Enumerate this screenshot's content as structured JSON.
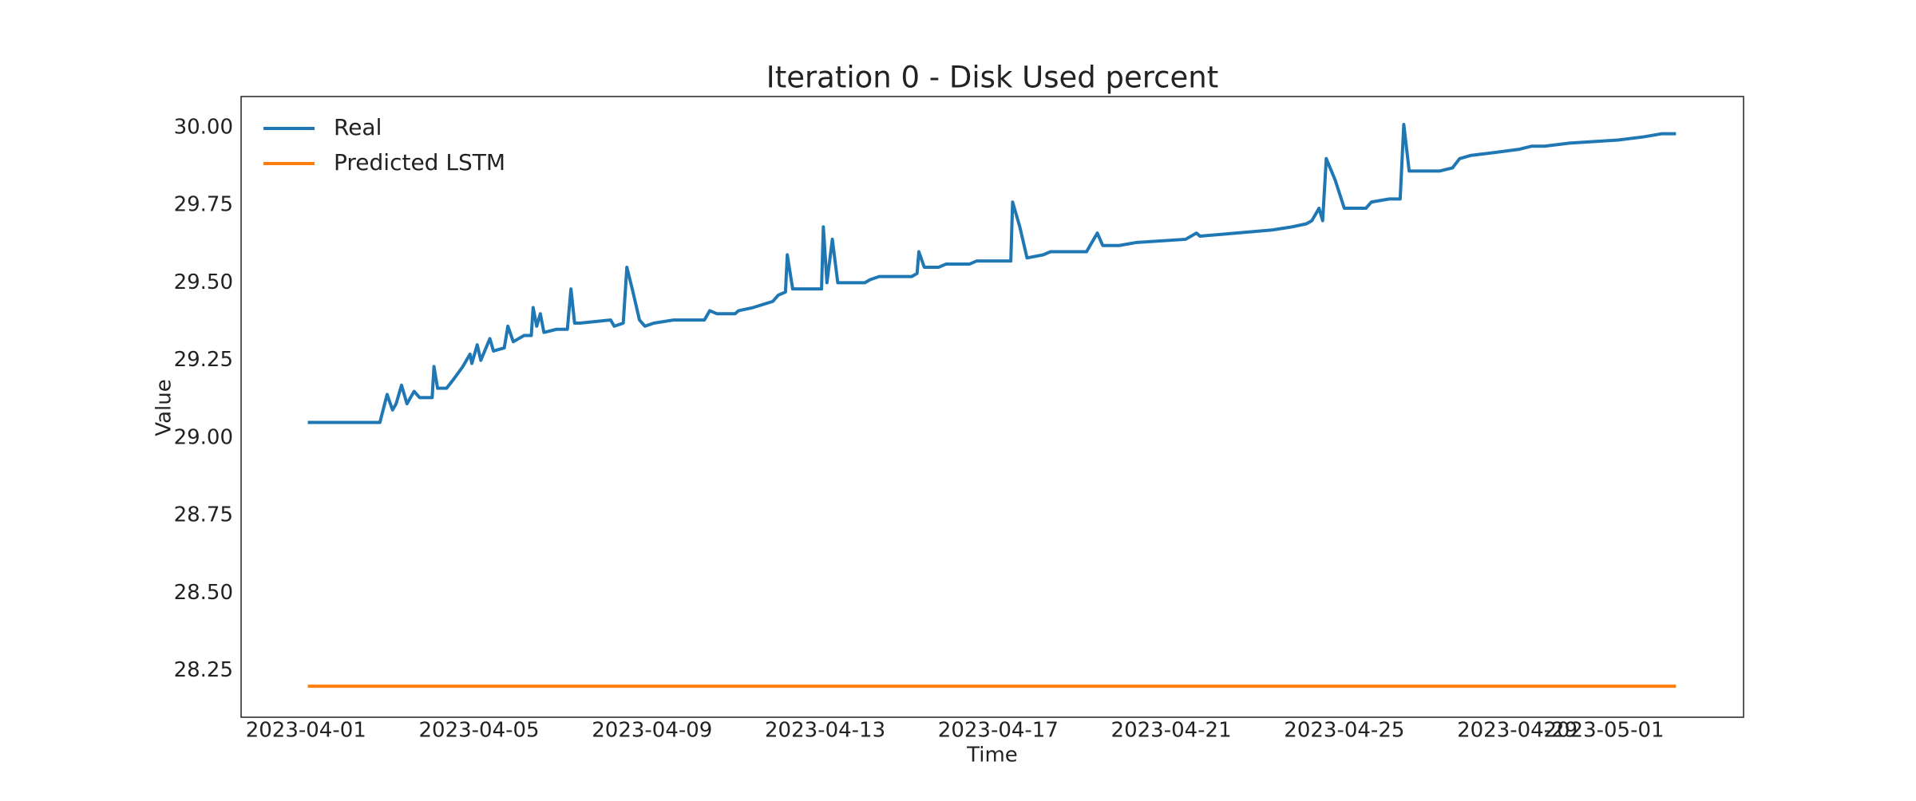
{
  "chart_data": {
    "type": "line",
    "title": "Iteration 0 - Disk Used percent",
    "xlabel": "Time",
    "ylabel": "Value",
    "xlim": [
      "2023-03-30 12:00",
      "2023-05-04 05:30"
    ],
    "xticks": [
      "2023-04-01",
      "2023-04-05",
      "2023-04-09",
      "2023-04-13",
      "2023-04-17",
      "2023-04-21",
      "2023-04-25",
      "2023-04-29",
      "2023-05-01"
    ],
    "ylim": [
      28.1,
      30.1
    ],
    "yticks": [
      {
        "value": 28.25,
        "label": "28.25"
      },
      {
        "value": 28.5,
        "label": "28.50"
      },
      28.75,
      {
        "value": 29,
        "label": "29.00"
      },
      29.25,
      {
        "value": 29.5,
        "label": "29.50"
      },
      29.75,
      {
        "value": 30,
        "label": "30.00"
      }
    ],
    "grid": false,
    "legend": "upper left",
    "series": [
      {
        "name": "Real",
        "color": "#1f77b4",
        "x": [
          "2023-04-01 01:00",
          "2023-04-02 12:00",
          "2023-04-02 17:00",
          "2023-04-02 21:00",
          "2023-04-03 00:00",
          "2023-04-03 02:00",
          "2023-04-03 05:00",
          "2023-04-03 08:00",
          "2023-04-03 12:00",
          "2023-04-03 15:00",
          "2023-04-03 22:00",
          "2023-04-03 23:00",
          "2023-04-04 01:00",
          "2023-04-04 06:00",
          "2023-04-04 10:00",
          "2023-04-04 15:00",
          "2023-04-04 19:00",
          "2023-04-04 20:00",
          "2023-04-04 23:00",
          "2023-04-05 01:00",
          "2023-04-05 06:00",
          "2023-04-05 08:00",
          "2023-04-05 14:00",
          "2023-04-05 16:00",
          "2023-04-05 19:00",
          "2023-04-06 01:00",
          "2023-04-06 05:00",
          "2023-04-06 06:00",
          "2023-04-06 08:00",
          "2023-04-06 10:00",
          "2023-04-06 12:00",
          "2023-04-06 19:00",
          "2023-04-07 01:00",
          "2023-04-07 03:00",
          "2023-04-07 05:00",
          "2023-04-07 08:00",
          "2023-04-08 01:00",
          "2023-04-08 03:00",
          "2023-04-08 08:00",
          "2023-04-08 10:00",
          "2023-04-08 13:00",
          "2023-04-08 17:00",
          "2023-04-08 20:00",
          "2023-04-09 01:00",
          "2023-04-09 12:00",
          "2023-04-10 05:00",
          "2023-04-10 08:00",
          "2023-04-10 12:00",
          "2023-04-10 22:00",
          "2023-04-11 00:00",
          "2023-04-11 08:00",
          "2023-04-11 19:00",
          "2023-04-11 22:00",
          "2023-04-12 02:00",
          "2023-04-12 03:00",
          "2023-04-12 06:00",
          "2023-04-12 12:00",
          "2023-04-12 22:00",
          "2023-04-12 23:00",
          "2023-04-13 01:00",
          "2023-04-13 04:00",
          "2023-04-13 07:00",
          "2023-04-13 22:00",
          "2023-04-14 01:00",
          "2023-04-14 06:00",
          "2023-04-15 00:00",
          "2023-04-15 03:00",
          "2023-04-15 04:00",
          "2023-04-15 07:00",
          "2023-04-15 15:00",
          "2023-04-15 19:00",
          "2023-04-16 08:00",
          "2023-04-16 12:00",
          "2023-04-17 07:00",
          "2023-04-17 08:00",
          "2023-04-17 12:00",
          "2023-04-17 16:00",
          "2023-04-18 01:00",
          "2023-04-18 05:00",
          "2023-04-19 01:00",
          "2023-04-19 07:00",
          "2023-04-19 10:00",
          "2023-04-19 19:00",
          "2023-04-20 05:00",
          "2023-04-21 08:00",
          "2023-04-21 14:00",
          "2023-04-21 16:00",
          "2023-04-22 12:00",
          "2023-04-23 08:00",
          "2023-04-23 19:00",
          "2023-04-24 03:00",
          "2023-04-24 06:00",
          "2023-04-24 10:00",
          "2023-04-24 12:00",
          "2023-04-24 14:00",
          "2023-04-24 19:00",
          "2023-04-25 00:00",
          "2023-04-25 12:00",
          "2023-04-25 15:00",
          "2023-04-26 01:00",
          "2023-04-26 07:00",
          "2023-04-26 09:00",
          "2023-04-26 12:00",
          "2023-04-27 05:00",
          "2023-04-27 12:00",
          "2023-04-27 16:00",
          "2023-04-27 22:00",
          "2023-04-28 12:00",
          "2023-04-29 01:00",
          "2023-04-29 08:00",
          "2023-04-29 15:00",
          "2023-04-30 05:00",
          "2023-05-01 08:00",
          "2023-05-01 22:00",
          "2023-05-02 08:00",
          "2023-05-02 16:00"
        ],
        "values": [
          29.05,
          29.05,
          29.05,
          29.14,
          29.09,
          29.11,
          29.17,
          29.11,
          29.15,
          29.13,
          29.13,
          29.23,
          29.16,
          29.16,
          29.19,
          29.23,
          29.27,
          29.24,
          29.3,
          29.25,
          29.32,
          29.28,
          29.29,
          29.36,
          29.31,
          29.33,
          29.33,
          29.42,
          29.36,
          29.4,
          29.34,
          29.35,
          29.35,
          29.48,
          29.37,
          29.37,
          29.38,
          29.36,
          29.37,
          29.55,
          29.48,
          29.38,
          29.36,
          29.37,
          29.38,
          29.38,
          29.41,
          29.4,
          29.4,
          29.41,
          29.42,
          29.44,
          29.46,
          29.47,
          29.59,
          29.48,
          29.48,
          29.48,
          29.68,
          29.5,
          29.64,
          29.5,
          29.5,
          29.51,
          29.52,
          29.52,
          29.53,
          29.6,
          29.55,
          29.55,
          29.56,
          29.56,
          29.57,
          29.57,
          29.76,
          29.68,
          29.58,
          29.59,
          29.6,
          29.6,
          29.66,
          29.62,
          29.62,
          29.63,
          29.64,
          29.66,
          29.65,
          29.66,
          29.67,
          29.68,
          29.69,
          29.7,
          29.74,
          29.7,
          29.9,
          29.83,
          29.74,
          29.74,
          29.76,
          29.77,
          29.77,
          30.01,
          29.86,
          29.86,
          29.87,
          29.9,
          29.91,
          29.92,
          29.93,
          29.94,
          29.94,
          29.95,
          29.96,
          29.97,
          29.98,
          29.98
        ]
      },
      {
        "name": "Predicted LSTM",
        "color": "#ff7f0e",
        "x": [
          "2023-04-01 01:00",
          "2023-05-02 16:00"
        ],
        "values": [
          28.2,
          28.2
        ]
      }
    ]
  }
}
